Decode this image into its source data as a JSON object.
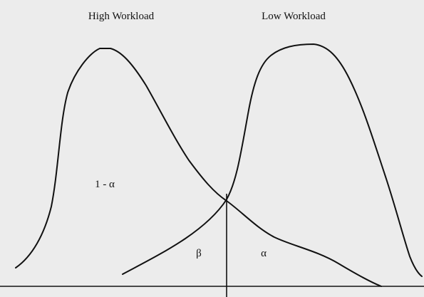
{
  "labels": {
    "high": "High Workload",
    "low": "Low Workload",
    "one_minus_alpha": "1 - α",
    "beta": "β",
    "alpha": "α"
  }
}
